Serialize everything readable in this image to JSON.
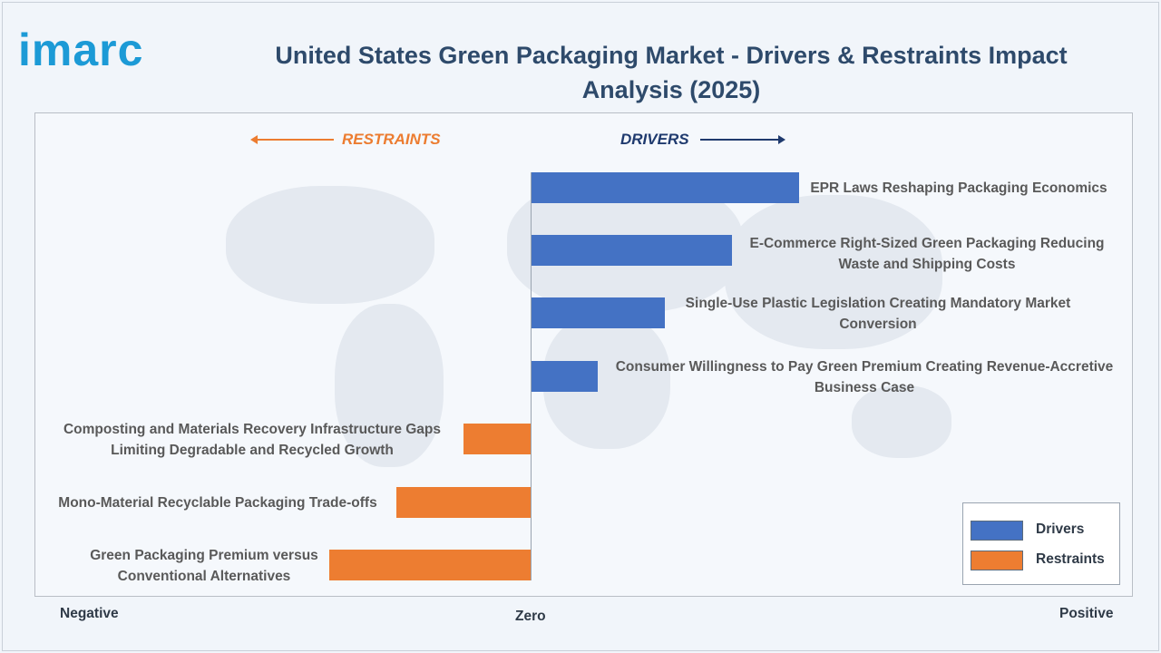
{
  "header": {
    "logo": "imarc",
    "title": "United States Green Packaging Market - Drivers & Restraints Impact Analysis (2025)"
  },
  "direction": {
    "restraints": "RESTRAINTS",
    "drivers": "DRIVERS"
  },
  "axis": {
    "negative": "Negative",
    "zero": "Zero",
    "positive": "Positive"
  },
  "legend": [
    {
      "label": "Drivers",
      "color": "#4472c4"
    },
    {
      "label": "Restraints",
      "color": "#ed7d31"
    }
  ],
  "colors": {
    "drivers": "#4472c4",
    "restraints": "#ed7d31"
  },
  "chart_data": {
    "type": "bar",
    "orientation": "horizontal",
    "title": "United States Green Packaging Market - Drivers & Restraints Impact Analysis (2025)",
    "xlabel": "",
    "ylabel": "",
    "categories": [
      "EPR Laws Reshaping Packaging Economics",
      "E-Commerce Right-Sized Green Packaging Reducing Waste and Shipping Costs",
      "Single-Use Plastic Legislation Creating Mandatory Market Conversion",
      "Consumer Willingness to Pay Green Premium Creating Revenue-Accretive Business Case",
      "Composting and Materials Recovery Infrastructure Gaps Limiting Degradable and Recycled Growth",
      "Mono-Material Recyclable Packaging Trade-offs",
      "Green Packaging Premium versus Conventional Alternatives"
    ],
    "series": [
      {
        "name": "Drivers",
        "values": [
          4,
          3,
          2,
          1,
          null,
          null,
          null
        ]
      },
      {
        "name": "Restraints",
        "values": [
          null,
          null,
          null,
          null,
          -1,
          -2,
          -3
        ]
      }
    ],
    "xlim": [
      -7.4,
      8.8
    ],
    "legend_position": "bottom-right",
    "grid": false
  }
}
